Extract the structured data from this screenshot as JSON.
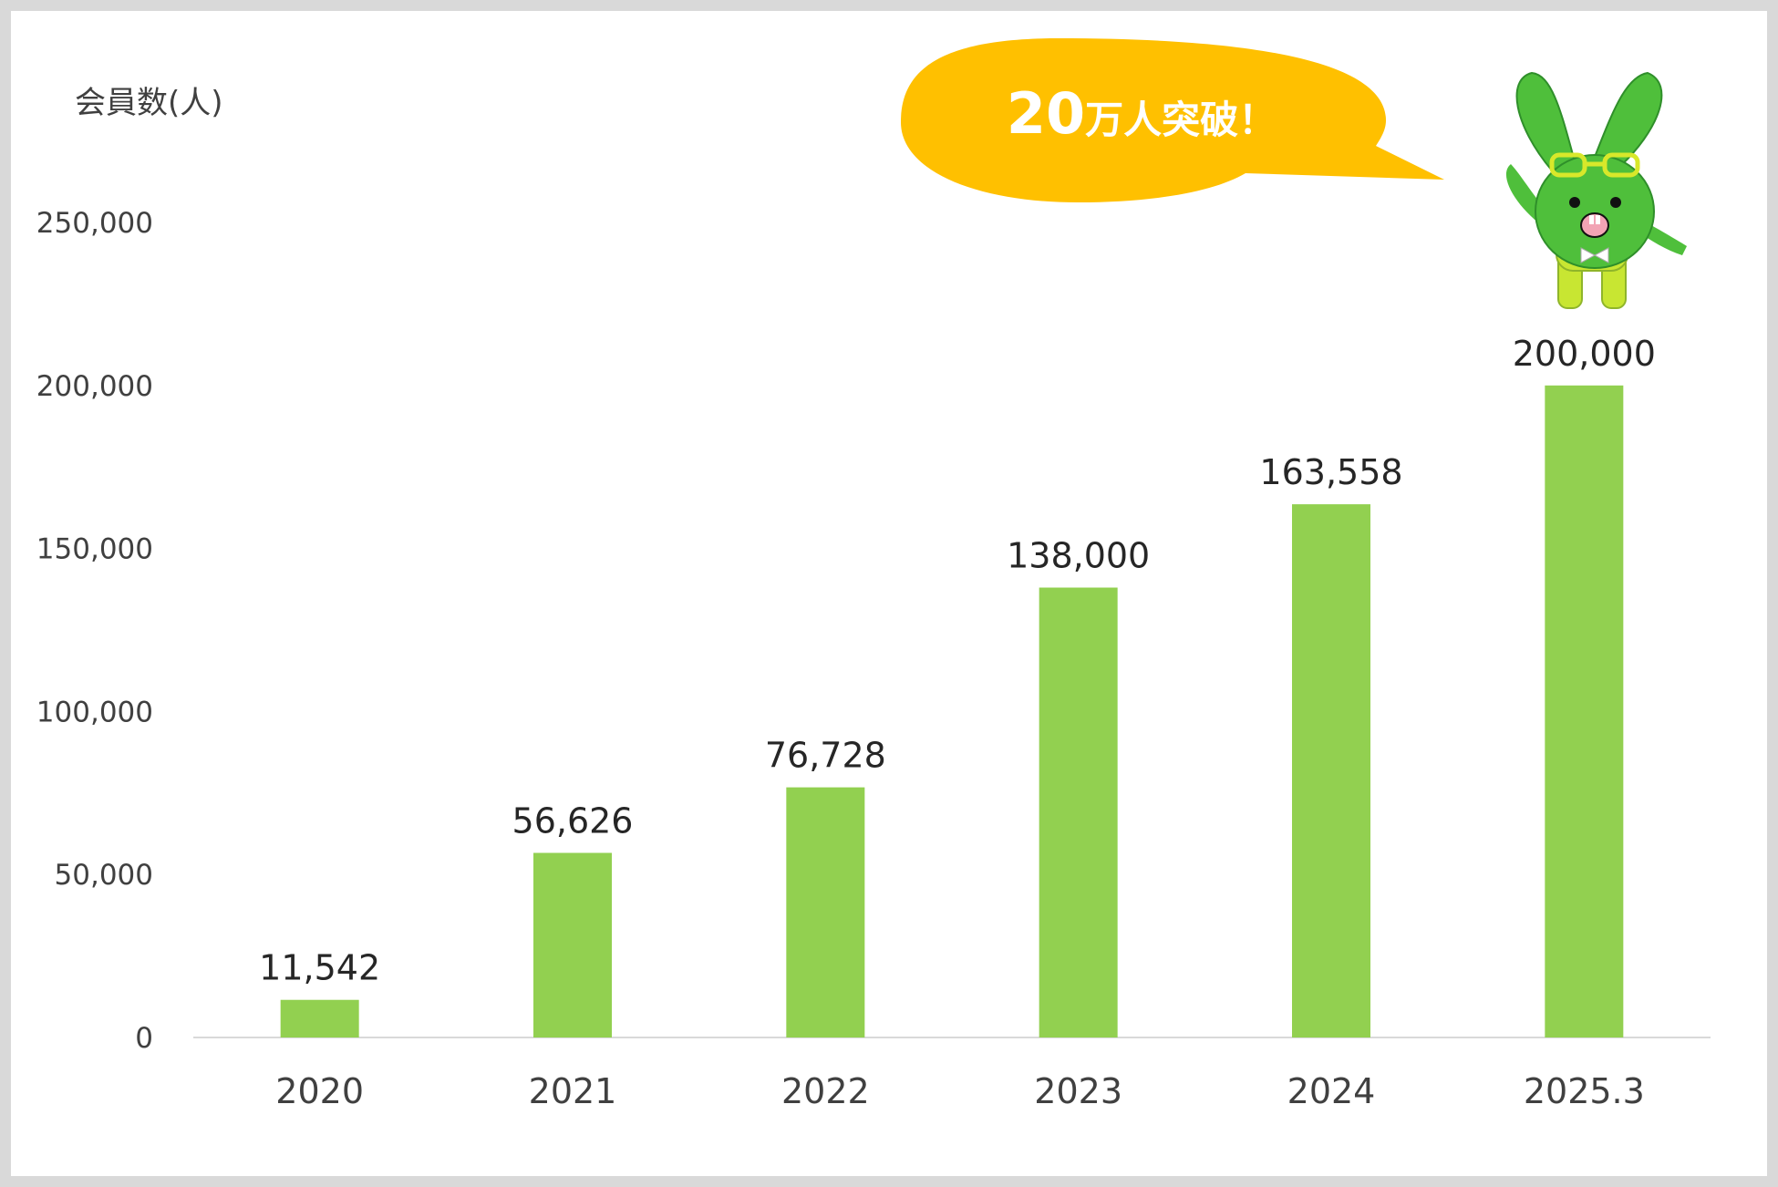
{
  "chart_data": {
    "type": "bar",
    "ylabel": "会員数(人)",
    "categories": [
      "2020",
      "2021",
      "2022",
      "2023",
      "2024",
      "2025.3"
    ],
    "values": [
      11542,
      56626,
      76728,
      138000,
      163558,
      200000
    ],
    "data_labels": [
      "11,542",
      "56,626",
      "76,728",
      "138,000",
      "163,558",
      "200,000"
    ],
    "ylim": [
      0,
      250000
    ],
    "yticks": [
      0,
      50000,
      100000,
      150000,
      200000,
      250000
    ],
    "ytick_labels": [
      "0",
      "50,000",
      "100,000",
      "150,000",
      "200,000",
      "250,000"
    ],
    "bar_color": "#92d050",
    "grid": false,
    "legend": "none"
  },
  "callout": {
    "number": "20",
    "text": "万人突破！",
    "color": "#ffc000"
  },
  "mascot": {
    "icon": "green-rabbit-mascot-icon",
    "body_color": "#4fbf3b",
    "accent_color": "#c8e632"
  }
}
